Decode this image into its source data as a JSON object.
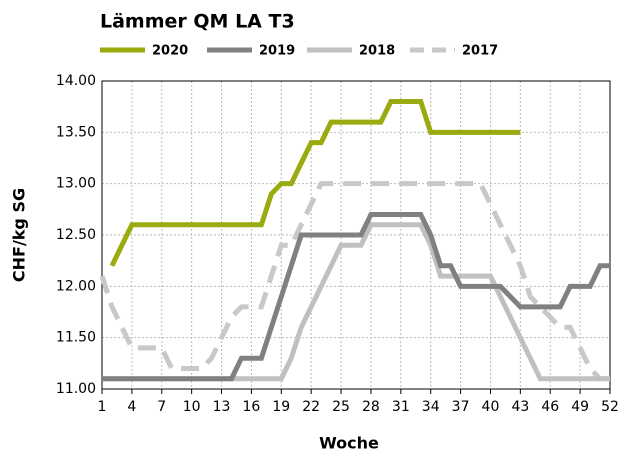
{
  "chart_data": {
    "type": "line",
    "title": "Lämmer QM LA T3",
    "xlabel": "Woche",
    "ylabel": "CHF/kg SG",
    "x": [
      1,
      2,
      3,
      4,
      5,
      6,
      7,
      8,
      9,
      10,
      11,
      12,
      13,
      14,
      15,
      16,
      17,
      18,
      19,
      20,
      21,
      22,
      23,
      24,
      25,
      26,
      27,
      28,
      29,
      30,
      31,
      32,
      33,
      34,
      35,
      36,
      37,
      38,
      39,
      40,
      41,
      42,
      43,
      44,
      45,
      46,
      47,
      48,
      49,
      50,
      51,
      52
    ],
    "xlim": [
      1,
      52
    ],
    "xticks": [
      1,
      4,
      7,
      10,
      13,
      16,
      19,
      22,
      25,
      28,
      31,
      34,
      37,
      40,
      43,
      46,
      49,
      52
    ],
    "ylim": [
      11,
      14
    ],
    "yticks": [
      {
        "value": 11,
        "label": "11.00"
      },
      {
        "value": 11.5,
        "label": "11.50"
      },
      {
        "value": 12,
        "label": "12.00"
      },
      {
        "value": 12.5,
        "label": "12.50"
      },
      {
        "value": 13,
        "label": "13.00"
      },
      {
        "value": 13.5,
        "label": "13.50"
      },
      {
        "value": 14,
        "label": "14.00"
      }
    ],
    "grid": true,
    "legend": "top",
    "series": [
      {
        "name": "2020",
        "color": "#9aab0f",
        "dash": false,
        "values": [
          null,
          12.2,
          12.4,
          12.6,
          12.6,
          12.6,
          12.6,
          12.6,
          12.6,
          12.6,
          12.6,
          12.6,
          12.6,
          12.6,
          12.6,
          12.6,
          12.6,
          12.9,
          13.0,
          13.0,
          13.2,
          13.4,
          13.4,
          13.6,
          13.6,
          13.6,
          13.6,
          13.6,
          13.6,
          13.8,
          13.8,
          13.8,
          13.8,
          13.5,
          13.5,
          13.5,
          13.5,
          13.5,
          13.5,
          13.5,
          13.5,
          13.5,
          13.5,
          null,
          null,
          null,
          null,
          null,
          null,
          null,
          null,
          null
        ]
      },
      {
        "name": "2019",
        "color": "#808080",
        "dash": false,
        "values": [
          11.1,
          11.1,
          11.1,
          11.1,
          11.1,
          11.1,
          11.1,
          11.1,
          11.1,
          11.1,
          11.1,
          11.1,
          11.1,
          11.1,
          11.3,
          11.3,
          11.3,
          11.6,
          11.9,
          12.2,
          12.5,
          12.5,
          12.5,
          12.5,
          12.5,
          12.5,
          12.5,
          12.7,
          12.7,
          12.7,
          12.7,
          12.7,
          12.7,
          12.5,
          12.2,
          12.2,
          12.0,
          12.0,
          12.0,
          12.0,
          12.0,
          11.9,
          11.8,
          11.8,
          11.8,
          11.8,
          11.8,
          12.0,
          12.0,
          12.0,
          12.2,
          12.2
        ]
      },
      {
        "name": "2018",
        "color": "#c0c0c0",
        "dash": false,
        "values": [
          11.1,
          11.1,
          11.1,
          11.1,
          11.1,
          11.1,
          11.1,
          11.1,
          11.1,
          11.1,
          11.1,
          11.1,
          11.1,
          11.1,
          11.1,
          11.1,
          11.1,
          11.1,
          11.1,
          11.3,
          11.6,
          11.8,
          12.0,
          12.2,
          12.4,
          12.4,
          12.4,
          12.6,
          12.6,
          12.6,
          12.6,
          12.6,
          12.6,
          12.4,
          12.1,
          12.1,
          12.1,
          12.1,
          12.1,
          12.1,
          11.9,
          11.7,
          11.5,
          11.3,
          11.1,
          11.1,
          11.1,
          11.1,
          11.1,
          11.1,
          11.1,
          11.1
        ]
      },
      {
        "name": "2017",
        "color": "#c8c8c8",
        "dash": true,
        "values": [
          12.1,
          11.8,
          11.6,
          11.4,
          11.4,
          11.4,
          11.4,
          11.2,
          11.2,
          11.2,
          11.2,
          11.3,
          11.5,
          11.7,
          11.8,
          11.8,
          11.8,
          12.1,
          12.4,
          12.4,
          12.6,
          12.8,
          13.0,
          13.0,
          13.0,
          13.0,
          13.0,
          13.0,
          13.0,
          13.0,
          13.0,
          13.0,
          13.0,
          13.0,
          13.0,
          13.0,
          13.0,
          13.0,
          13.0,
          12.8,
          12.6,
          12.4,
          12.2,
          11.9,
          11.8,
          11.7,
          11.6,
          11.6,
          11.4,
          11.2,
          11.1,
          11.1
        ]
      }
    ]
  }
}
